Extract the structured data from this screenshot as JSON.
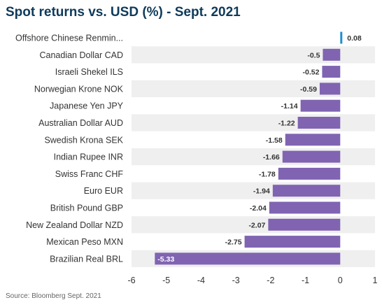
{
  "title": "Spot returns vs. USD (%) - Sept. 2021",
  "source": "Source: Bloomberg Sept. 2021",
  "colors": {
    "negative_bar": "#8064b2",
    "positive_bar": "#1f8fd0",
    "band": "#efefef",
    "text": "#333333",
    "title": "#0e3a5a"
  },
  "chart_data": {
    "type": "bar",
    "orientation": "horizontal",
    "title": "Spot returns vs. USD (%) - Sept. 2021",
    "categories": [
      "Offshore Chinese Renmin...",
      "Canadian Dollar CAD",
      "Israeli Shekel ILS",
      "Norwegian Krone NOK",
      "Japanese Yen JPY",
      "Australian Dollar AUD",
      "Swedish Krona SEK",
      "Indian Rupee INR",
      "Swiss Franc CHF",
      "Euro EUR",
      "British Pound GBP",
      "New Zealand Dollar NZD",
      "Mexican Peso MXN",
      "Brazilian Real BRL"
    ],
    "values": [
      0.08,
      -0.5,
      -0.52,
      -0.59,
      -1.14,
      -1.22,
      -1.58,
      -1.66,
      -1.78,
      -1.94,
      -2.04,
      -2.07,
      -2.75,
      -5.33
    ],
    "labels": [
      "0.08",
      "-0.5",
      "-0.52",
      "-0.59",
      "-1.14",
      "-1.22",
      "-1.58",
      "-1.66",
      "-1.78",
      "-1.94",
      "-2.04",
      "-2.07",
      "-2.75",
      "-5.33"
    ],
    "xlim": [
      -6,
      1
    ],
    "xticks": [
      -6,
      -5,
      -4,
      -3,
      -2,
      -1,
      0,
      1
    ],
    "xtick_labels": [
      "-6",
      "-5",
      "-4",
      "-3",
      "-2",
      "-1",
      "0",
      "1"
    ],
    "grid": false,
    "alternating_row_bands": true
  }
}
